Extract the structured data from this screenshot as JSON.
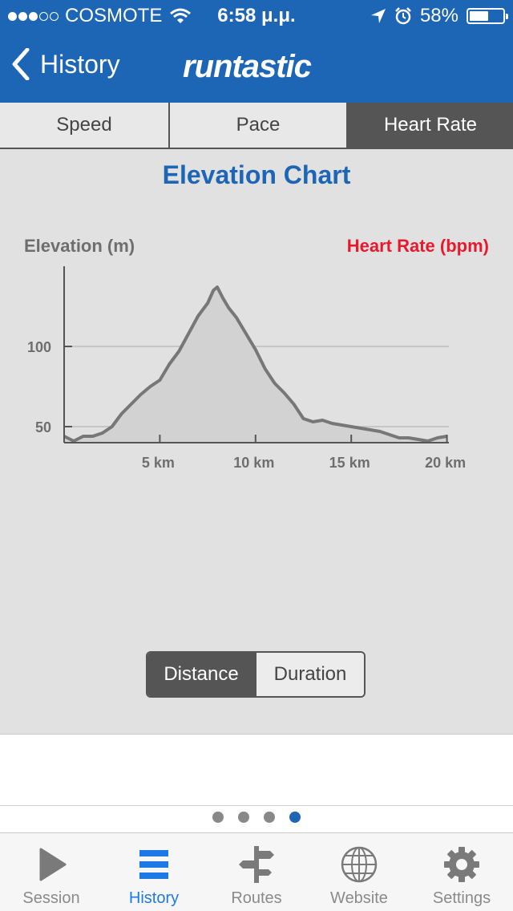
{
  "status_bar": {
    "carrier": "COSMOTE",
    "time": "6:58 μ.μ.",
    "battery": "58%",
    "battery_level": 0.58
  },
  "nav": {
    "back_label": "History",
    "logo_text": "runtastic"
  },
  "segments": [
    {
      "label": "Speed",
      "active": false
    },
    {
      "label": "Pace",
      "active": false
    },
    {
      "label": "Heart Rate",
      "active": true
    }
  ],
  "chart_title": "Elevation Chart",
  "colors": {
    "brand": "#1d65b5",
    "heart_rate": "#e8192c",
    "line": "#777777",
    "fill": "#d2d2d2"
  },
  "chart_data": {
    "type": "area",
    "title": "",
    "ylabel": "Elevation (m)",
    "y2label": "Heart Rate (bpm)",
    "xlabel": "",
    "xticks": [
      {
        "value": 5,
        "label": "5 km"
      },
      {
        "value": 10,
        "label": "10 km"
      },
      {
        "value": 15,
        "label": "15 km"
      },
      {
        "value": 20,
        "label": "20 km"
      }
    ],
    "yticks": [
      {
        "value": 50,
        "label": "50"
      },
      {
        "value": 100,
        "label": "100"
      }
    ],
    "xlim": [
      0,
      20.1
    ],
    "ylim": [
      40,
      150
    ],
    "grid": true,
    "series": [
      {
        "x": [
          0,
          0.5,
          1,
          1.5,
          2,
          2.5,
          3,
          3.5,
          4,
          4.5,
          5,
          5.5,
          6,
          6.5,
          7,
          7.5,
          7.8,
          8,
          8.3,
          8.6,
          9,
          9.5,
          10,
          10.5,
          11,
          11.5,
          12,
          12.5,
          13,
          13.5,
          14,
          14.5,
          15,
          15.5,
          16,
          16.5,
          17,
          17.5,
          18,
          18.5,
          19,
          19.5,
          20
        ],
        "y": [
          44,
          41,
          44,
          44,
          46,
          50,
          58,
          64,
          70,
          75,
          79,
          89,
          97,
          108,
          119,
          127,
          135,
          137,
          130,
          124,
          118,
          108,
          98,
          86,
          77,
          71,
          64,
          55,
          53,
          54,
          52,
          51,
          50,
          49,
          48,
          47,
          45,
          43,
          43,
          42,
          41,
          43,
          44
        ]
      }
    ]
  },
  "toggle": [
    {
      "label": "Distance",
      "active": true
    },
    {
      "label": "Duration",
      "active": false
    }
  ],
  "pager": {
    "count": 4,
    "active_index": 3
  },
  "tabbar": [
    {
      "label": "Session",
      "icon": "play-icon",
      "active": false
    },
    {
      "label": "History",
      "icon": "list-icon",
      "active": true
    },
    {
      "label": "Routes",
      "icon": "signpost-icon",
      "active": false
    },
    {
      "label": "Website",
      "icon": "globe-icon",
      "active": false
    },
    {
      "label": "Settings",
      "icon": "gear-icon",
      "active": false
    }
  ]
}
